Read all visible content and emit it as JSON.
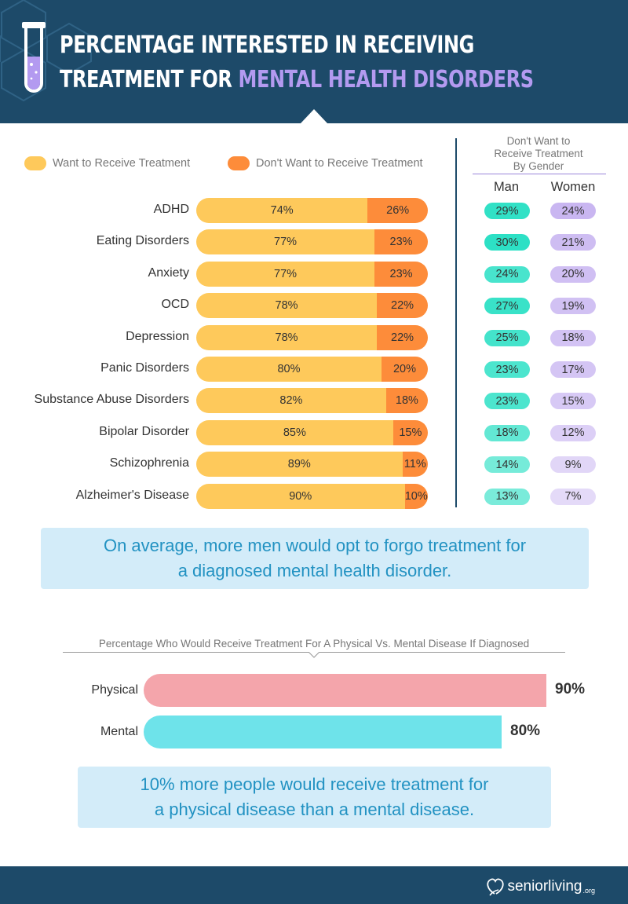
{
  "header": {
    "title_line1": "PERCENTAGE INTERESTED IN RECEIVING",
    "title_line2_plain": "TREATMENT FOR ",
    "title_line2_highlight": "MENTAL HEALTH DISORDERS"
  },
  "legend": {
    "want_label": "Want to Receive Treatment",
    "dont_label": "Don't Want to Receive Treatment",
    "want_color": "#fec95b",
    "dont_color": "#fd8c3a"
  },
  "gender_panel": {
    "title": "Don't Want to Receive Treatment By Gender",
    "man_label": "Man",
    "women_label": "Women",
    "man_color": "#2de0c5",
    "women_color": "#c9b6f1"
  },
  "chart_data": [
    {
      "type": "bar",
      "orientation": "horizontal-stacked",
      "title": "PERCENTAGE INTERESTED IN RECEIVING TREATMENT FOR MENTAL HEALTH DISORDERS",
      "categories": [
        "ADHD",
        "Eating Disorders",
        "Anxiety",
        "OCD",
        "Depression",
        "Panic Disorders",
        "Substance Abuse Disorders",
        "Bipolar Disorder",
        "Schizophrenia",
        "Alzheimer's Disease"
      ],
      "series": [
        {
          "name": "Want to Receive Treatment",
          "values": [
            74,
            77,
            77,
            78,
            78,
            80,
            82,
            85,
            89,
            90
          ],
          "color": "#fec95b"
        },
        {
          "name": "Don't Want to Receive Treatment",
          "values": [
            26,
            23,
            23,
            22,
            22,
            20,
            18,
            15,
            11,
            10
          ],
          "color": "#fd8c3a"
        }
      ],
      "unit": "%"
    },
    {
      "type": "table",
      "title": "Don't Want to Receive Treatment By Gender",
      "categories": [
        "ADHD",
        "Eating Disorders",
        "Anxiety",
        "OCD",
        "Depression",
        "Panic Disorders",
        "Substance Abuse Disorders",
        "Bipolar Disorder",
        "Schizophrenia",
        "Alzheimer's Disease"
      ],
      "series": [
        {
          "name": "Man",
          "values": [
            29,
            30,
            24,
            27,
            25,
            23,
            23,
            18,
            14,
            13
          ]
        },
        {
          "name": "Women",
          "values": [
            24,
            21,
            20,
            19,
            18,
            17,
            15,
            12,
            9,
            7
          ]
        }
      ],
      "unit": "%"
    },
    {
      "type": "bar",
      "orientation": "horizontal",
      "title": "Percentage Who Would Receive Treatment For A Physical Vs. Mental Disease If Diagnosed",
      "categories": [
        "Physical",
        "Mental"
      ],
      "values": [
        90,
        80
      ],
      "colors": [
        "#f4a5ab",
        "#6ee3ea"
      ],
      "unit": "%"
    }
  ],
  "note1": {
    "line1": "On average, more men would opt to forgo treatment for",
    "line2": "a diagnosed mental health disorder."
  },
  "note2": {
    "line1": "10% more people would receive treatment for",
    "line2": "a physical disease than a mental disease."
  },
  "footer": {
    "brand": "seniorliving",
    "brand_suffix": ".org"
  }
}
